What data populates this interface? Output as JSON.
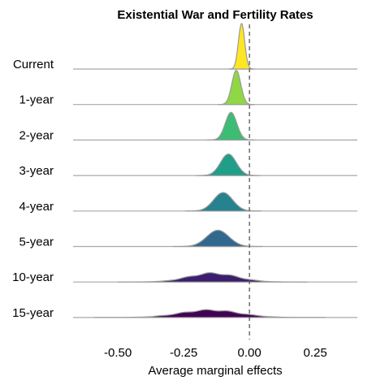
{
  "chart_data": {
    "type": "ridgeline",
    "title": "Existential War and Fertility Rates",
    "xlabel": "Average marginal effects",
    "ylabel": "",
    "xlim": [
      -0.67,
      0.41
    ],
    "x_ticks": [
      -0.5,
      -0.25,
      0.0,
      0.25
    ],
    "x_tick_labels": [
      "-0.50",
      "-0.25",
      "0.00",
      "0.25"
    ],
    "reference_line": {
      "x": 0.0,
      "style": "dashed"
    },
    "grid": false,
    "legend": "none",
    "series": [
      {
        "name": "Current",
        "mean": -0.03,
        "sd": 0.012,
        "color": "#FDE725"
      },
      {
        "name": "1-year",
        "mean": -0.05,
        "sd": 0.017,
        "color": "#8FD744"
      },
      {
        "name": "2-year",
        "mean": -0.07,
        "sd": 0.022,
        "color": "#3DBC74"
      },
      {
        "name": "3-year",
        "mean": -0.08,
        "sd": 0.03,
        "color": "#1F9E89"
      },
      {
        "name": "4-year",
        "mean": -0.1,
        "sd": 0.036,
        "color": "#26828E"
      },
      {
        "name": "5-year",
        "mean": -0.12,
        "sd": 0.042,
        "color": "#31688E"
      },
      {
        "name": "10-year",
        "mean": -0.14,
        "sd": 0.09,
        "color": "#3B1F6E"
      },
      {
        "name": "15-year",
        "mean": -0.15,
        "sd": 0.11,
        "color": "#440154"
      }
    ]
  }
}
